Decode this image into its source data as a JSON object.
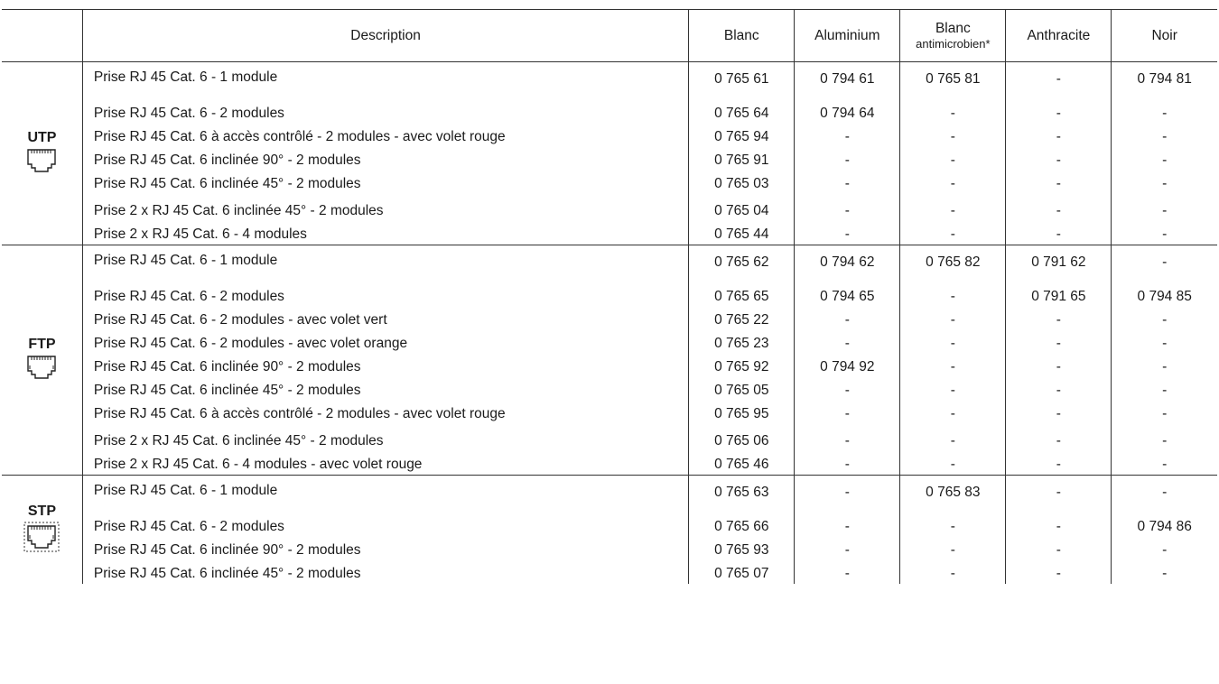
{
  "header": {
    "type": "",
    "description": "Description",
    "blanc": "Blanc",
    "aluminium": "Aluminium",
    "blanc_anti_line1": "Blanc",
    "blanc_anti_line2": "antimicrobien*",
    "anthracite": "Anthracite",
    "noir": "Noir"
  },
  "groups": [
    {
      "type": "UTP",
      "icon": "rj45-socket-icon",
      "rows": [
        {
          "desc": "Prise RJ 45 Cat. 6 - 1 module",
          "blanc": "0 765 61",
          "alu": "0 794 61",
          "anti": "0 765 81",
          "anth": "-",
          "noir": "0 794 81"
        },
        {
          "desc": "Prise RJ 45 Cat. 6 - 2 modules",
          "blanc": "0 765 64",
          "alu": "0 794 64",
          "anti": "-",
          "anth": "-",
          "noir": "-"
        },
        {
          "desc": "Prise RJ 45 Cat. 6 à accès contrôlé - 2 modules - avec volet rouge",
          "blanc": "0 765 94",
          "alu": "-",
          "anti": "-",
          "anth": "-",
          "noir": "-"
        },
        {
          "desc": "Prise RJ 45 Cat. 6 inclinée 90° - 2 modules",
          "blanc": "0 765 91",
          "alu": "-",
          "anti": "-",
          "anth": "-",
          "noir": "-"
        },
        {
          "desc": "Prise RJ 45 Cat. 6 inclinée 45° - 2 modules",
          "blanc": "0 765 03",
          "alu": "-",
          "anti": "-",
          "anth": "-",
          "noir": "-"
        },
        {
          "desc": "Prise 2 x RJ 45 Cat. 6 inclinée 45° - 2 modules",
          "blanc": "0 765 04",
          "alu": "-",
          "anti": "-",
          "anth": "-",
          "noir": "-"
        },
        {
          "desc": "Prise 2 x RJ 45 Cat. 6 - 4 modules",
          "blanc": "0 765 44",
          "alu": "-",
          "anti": "-",
          "anth": "-",
          "noir": "-"
        }
      ]
    },
    {
      "type": "FTP",
      "icon": "rj45-shielded-socket-icon",
      "rows": [
        {
          "desc": "Prise RJ 45 Cat. 6 - 1 module",
          "blanc": "0 765 62",
          "alu": "0 794 62",
          "anti": "0 765 82",
          "anth": "0 791 62",
          "noir": "-"
        },
        {
          "desc": "Prise RJ 45 Cat. 6 - 2 modules",
          "blanc": "0 765 65",
          "alu": "0 794 65",
          "anti": "-",
          "anth": "0 791 65",
          "noir": "0 794 85"
        },
        {
          "desc": "Prise RJ 45 Cat. 6 - 2 modules - avec volet vert",
          "blanc": "0 765 22",
          "alu": "-",
          "anti": "-",
          "anth": "-",
          "noir": "-"
        },
        {
          "desc": "Prise RJ 45 Cat. 6 - 2 modules - avec volet orange",
          "blanc": "0 765 23",
          "alu": "-",
          "anti": "-",
          "anth": "-",
          "noir": "-"
        },
        {
          "desc": "Prise RJ 45 Cat. 6 inclinée 90° - 2 modules",
          "blanc": "0 765 92",
          "alu": "0 794 92",
          "anti": "-",
          "anth": "-",
          "noir": "-"
        },
        {
          "desc": "Prise RJ 45 Cat. 6 inclinée 45° - 2 modules",
          "blanc": "0 765 05",
          "alu": "-",
          "anti": "-",
          "anth": "-",
          "noir": "-"
        },
        {
          "desc": "Prise RJ 45 Cat. 6 à accès contrôlé - 2 modules - avec volet rouge",
          "blanc": "0 765 95",
          "alu": "-",
          "anti": "-",
          "anth": "-",
          "noir": "-"
        },
        {
          "desc": "Prise 2 x RJ 45 Cat. 6 inclinée 45° - 2 modules",
          "blanc": "0 765 06",
          "alu": "-",
          "anti": "-",
          "anth": "-",
          "noir": "-"
        },
        {
          "desc": "Prise 2 x RJ 45 Cat. 6 - 4 modules - avec volet rouge",
          "blanc": "0 765 46",
          "alu": "-",
          "anti": "-",
          "anth": "-",
          "noir": "-"
        }
      ]
    },
    {
      "type": "STP",
      "icon": "rj45-double-shielded-socket-icon",
      "rows": [
        {
          "desc": "Prise RJ 45 Cat. 6 - 1 module",
          "blanc": "0 765 63",
          "alu": "-",
          "anti": "0 765 83",
          "anth": "-",
          "noir": "-"
        },
        {
          "desc": "Prise RJ 45 Cat. 6 - 2 modules",
          "blanc": "0 765 66",
          "alu": "-",
          "anti": "-",
          "anth": "-",
          "noir": "0 794 86"
        },
        {
          "desc": "Prise RJ 45 Cat. 6 inclinée 90° - 2 modules",
          "blanc": "0 765 93",
          "alu": "-",
          "anti": "-",
          "anth": "-",
          "noir": "-"
        },
        {
          "desc": "Prise RJ 45 Cat. 6 inclinée 45° - 2 modules",
          "blanc": "0 765 07",
          "alu": "-",
          "anti": "-",
          "anth": "-",
          "noir": "-"
        }
      ]
    }
  ]
}
